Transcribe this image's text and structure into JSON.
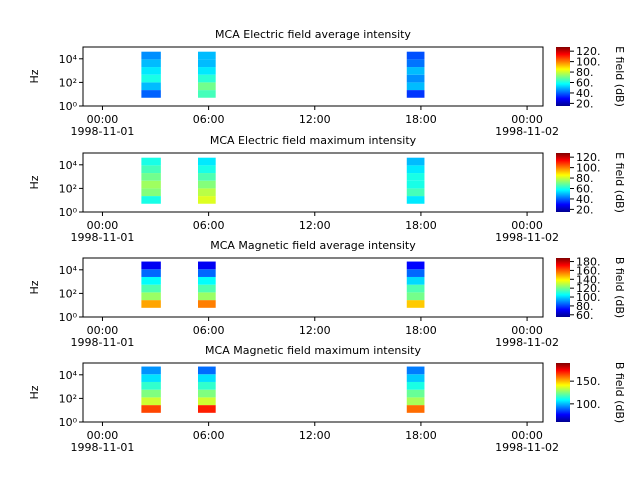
{
  "chart_data": [
    {
      "type": "spectrogram",
      "title": "MCA  Electric field average intensity",
      "ylabel": "Hz",
      "colorbar_label": "E field (dB)",
      "xlim": [
        -1.1,
        24.9
      ],
      "ylim": [
        1,
        100000
      ],
      "yscale": "log",
      "clim": [
        15,
        128
      ],
      "xticks": [
        {
          "value": 0,
          "label": "00:00"
        },
        {
          "value": 6,
          "label": "06:00"
        },
        {
          "value": 12,
          "label": "12:00"
        },
        {
          "value": 18,
          "label": "18:00"
        },
        {
          "value": 24,
          "label": "00:00"
        }
      ],
      "x_date_labels": [
        {
          "value": 0,
          "label": "1998-11-01"
        },
        {
          "value": 24,
          "label": "1998-11-02"
        }
      ],
      "yticks": [
        {
          "value": 1,
          "label": "10⁰"
        },
        {
          "value": 100,
          "label": "10²"
        },
        {
          "value": 10000,
          "label": "10⁴"
        }
      ],
      "cticks": [
        {
          "value": 20,
          "label": "20."
        },
        {
          "value": 40,
          "label": "40."
        },
        {
          "value": 60,
          "label": "60."
        },
        {
          "value": 80,
          "label": "80."
        },
        {
          "value": 100,
          "label": "100."
        },
        {
          "value": 120,
          "label": "120."
        }
      ],
      "blocks": [
        {
          "x": [
            2.2,
            3.3
          ],
          "freq": [
            5,
            40000
          ],
          "levels": [
            40,
            50,
            60,
            55,
            50,
            45
          ]
        },
        {
          "x": [
            5.4,
            6.4
          ],
          "freq": [
            5,
            40000
          ],
          "levels": [
            65,
            70,
            62,
            55,
            50,
            50
          ]
        },
        {
          "x": [
            17.2,
            18.2
          ],
          "freq": [
            5,
            40000
          ],
          "levels": [
            35,
            50,
            45,
            50,
            42,
            38
          ]
        }
      ]
    },
    {
      "type": "spectrogram",
      "title": "MCA  Electric field maximum intensity",
      "ylabel": "Hz",
      "colorbar_label": "E field (dB)",
      "xlim": [
        -1.1,
        24.9
      ],
      "ylim": [
        1,
        100000
      ],
      "yscale": "log",
      "clim": [
        15,
        128
      ],
      "xticks": [
        {
          "value": 0,
          "label": "00:00"
        },
        {
          "value": 6,
          "label": "06:00"
        },
        {
          "value": 12,
          "label": "12:00"
        },
        {
          "value": 18,
          "label": "18:00"
        },
        {
          "value": 24,
          "label": "00:00"
        }
      ],
      "x_date_labels": [
        {
          "value": 0,
          "label": "1998-11-01"
        },
        {
          "value": 24,
          "label": "1998-11-02"
        }
      ],
      "yticks": [
        {
          "value": 1,
          "label": "10⁰"
        },
        {
          "value": 100,
          "label": "10²"
        },
        {
          "value": 10000,
          "label": "10⁴"
        }
      ],
      "cticks": [
        {
          "value": 20,
          "label": "20."
        },
        {
          "value": 40,
          "label": "40."
        },
        {
          "value": 60,
          "label": "60."
        },
        {
          "value": 80,
          "label": "80."
        },
        {
          "value": 100,
          "label": "100."
        },
        {
          "value": 120,
          "label": "120."
        }
      ],
      "blocks": [
        {
          "x": [
            2.2,
            3.3
          ],
          "freq": [
            5,
            40000
          ],
          "levels": [
            60,
            72,
            75,
            70,
            65,
            60
          ]
        },
        {
          "x": [
            5.4,
            6.4
          ],
          "freq": [
            5,
            40000
          ],
          "levels": [
            82,
            78,
            72,
            66,
            60,
            55
          ]
        },
        {
          "x": [
            17.2,
            18.2
          ],
          "freq": [
            5,
            40000
          ],
          "levels": [
            55,
            65,
            60,
            60,
            55,
            50
          ]
        }
      ]
    },
    {
      "type": "spectrogram",
      "title": "MCA  Magnetic field average intensity",
      "ylabel": "Hz",
      "colorbar_label": "B field (dB)",
      "xlim": [
        -1.1,
        24.9
      ],
      "ylim": [
        1,
        100000
      ],
      "yscale": "log",
      "clim": [
        55,
        188
      ],
      "xticks": [
        {
          "value": 0,
          "label": "00:00"
        },
        {
          "value": 6,
          "label": "06:00"
        },
        {
          "value": 12,
          "label": "12:00"
        },
        {
          "value": 18,
          "label": "18:00"
        },
        {
          "value": 24,
          "label": "00:00"
        }
      ],
      "x_date_labels": [
        {
          "value": 0,
          "label": "1998-11-01"
        },
        {
          "value": 24,
          "label": "1998-11-02"
        }
      ],
      "yticks": [
        {
          "value": 1,
          "label": "10⁰"
        },
        {
          "value": 100,
          "label": "10²"
        },
        {
          "value": 10000,
          "label": "10⁴"
        }
      ],
      "cticks": [
        {
          "value": 60,
          "label": "60."
        },
        {
          "value": 80,
          "label": "80."
        },
        {
          "value": 100,
          "label": "100."
        },
        {
          "value": 120,
          "label": "120."
        },
        {
          "value": 140,
          "label": "140."
        },
        {
          "value": 160,
          "label": "160."
        },
        {
          "value": 180,
          "label": "180."
        }
      ],
      "blocks": [
        {
          "x": [
            2.2,
            3.3
          ],
          "freq": [
            6,
            50000
          ],
          "levels": [
            150,
            125,
            115,
            105,
            85,
            70
          ]
        },
        {
          "x": [
            5.4,
            6.4
          ],
          "freq": [
            6,
            50000
          ],
          "levels": [
            155,
            125,
            115,
            105,
            85,
            70
          ]
        },
        {
          "x": [
            17.2,
            18.2
          ],
          "freq": [
            6,
            50000
          ],
          "levels": [
            145,
            120,
            115,
            100,
            85,
            72
          ]
        }
      ]
    },
    {
      "type": "spectrogram",
      "title": "MCA  Magnetic field maximum intensity",
      "ylabel": "Hz",
      "colorbar_label": "B field (dB)",
      "xlim": [
        -1.1,
        24.9
      ],
      "ylim": [
        1,
        100000
      ],
      "yscale": "log",
      "clim": [
        60,
        190
      ],
      "xticks": [
        {
          "value": 0,
          "label": "00:00"
        },
        {
          "value": 6,
          "label": "06:00"
        },
        {
          "value": 12,
          "label": "12:00"
        },
        {
          "value": 18,
          "label": "18:00"
        },
        {
          "value": 24,
          "label": "00:00"
        }
      ],
      "x_date_labels": [
        {
          "value": 0,
          "label": "1998-11-01"
        },
        {
          "value": 24,
          "label": "1998-11-02"
        }
      ],
      "yticks": [
        {
          "value": 1,
          "label": "10⁰"
        },
        {
          "value": 100,
          "label": "10²"
        },
        {
          "value": 10000,
          "label": "10⁴"
        }
      ],
      "cticks": [
        {
          "value": 100,
          "label": "100."
        },
        {
          "value": 150,
          "label": "150."
        }
      ],
      "blocks": [
        {
          "x": [
            2.2,
            3.3
          ],
          "freq": [
            6,
            50000
          ],
          "levels": [
            165,
            135,
            125,
            115,
            105,
            95
          ]
        },
        {
          "x": [
            5.4,
            6.4
          ],
          "freq": [
            6,
            50000
          ],
          "levels": [
            170,
            135,
            125,
            115,
            105,
            90
          ]
        },
        {
          "x": [
            17.2,
            18.2
          ],
          "freq": [
            6,
            50000
          ],
          "levels": [
            160,
            130,
            122,
            112,
            102,
            92
          ]
        }
      ]
    }
  ]
}
